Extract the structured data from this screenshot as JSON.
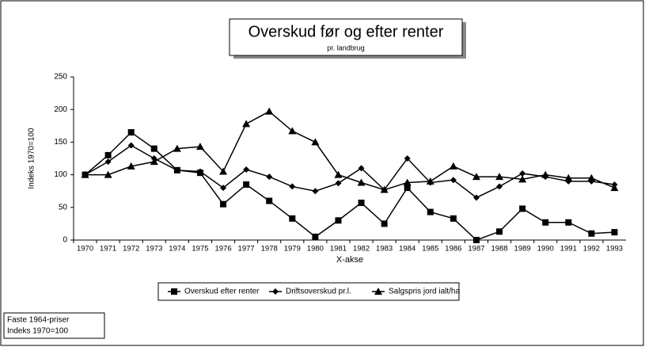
{
  "chart_data": {
    "type": "line",
    "title": "Overskud før og efter renter",
    "subtitle": "pr. landbrug",
    "x_label": "X-akse",
    "y_label": "Indeks 1970=100",
    "annotation": [
      "Faste 1964-priser",
      "Indeks 1970=100"
    ],
    "categories": [
      "1970",
      "1971",
      "1972",
      "1973",
      "1974",
      "1975",
      "1976",
      "1977",
      "1978",
      "1979",
      "1980",
      "1981",
      "1982",
      "1983",
      "1984",
      "1985",
      "1986",
      "1987",
      "1988",
      "1989",
      "1990",
      "1991",
      "1992",
      "1993"
    ],
    "series": [
      {
        "name": "Overskud efter renter",
        "color": "#000000",
        "marker": "square",
        "values": [
          100,
          130,
          165,
          140,
          107,
          103,
          55,
          85,
          60,
          33,
          5,
          30,
          57,
          25,
          80,
          43,
          33,
          0,
          13,
          48,
          27,
          27,
          10,
          12
        ]
      },
      {
        "name": "Driftsoverskud pr.l.",
        "color": "#000000",
        "marker": "diamond",
        "values": [
          100,
          120,
          145,
          125,
          107,
          105,
          80,
          108,
          97,
          82,
          75,
          87,
          110,
          77,
          125,
          88,
          92,
          65,
          82,
          102,
          97,
          90,
          90,
          85
        ]
      },
      {
        "name": "Salgspris jord ialt/ha",
        "color": "#000000",
        "marker": "triangle",
        "values": [
          100,
          100,
          113,
          120,
          140,
          143,
          105,
          178,
          197,
          167,
          150,
          100,
          88,
          77,
          88,
          90,
          113,
          97,
          97,
          93,
          100,
          95,
          95,
          80
        ]
      }
    ],
    "ylim": [
      0,
      250
    ],
    "yticks": [
      0,
      50,
      100,
      150,
      200,
      250
    ],
    "grid": false,
    "legend": "bottom"
  }
}
